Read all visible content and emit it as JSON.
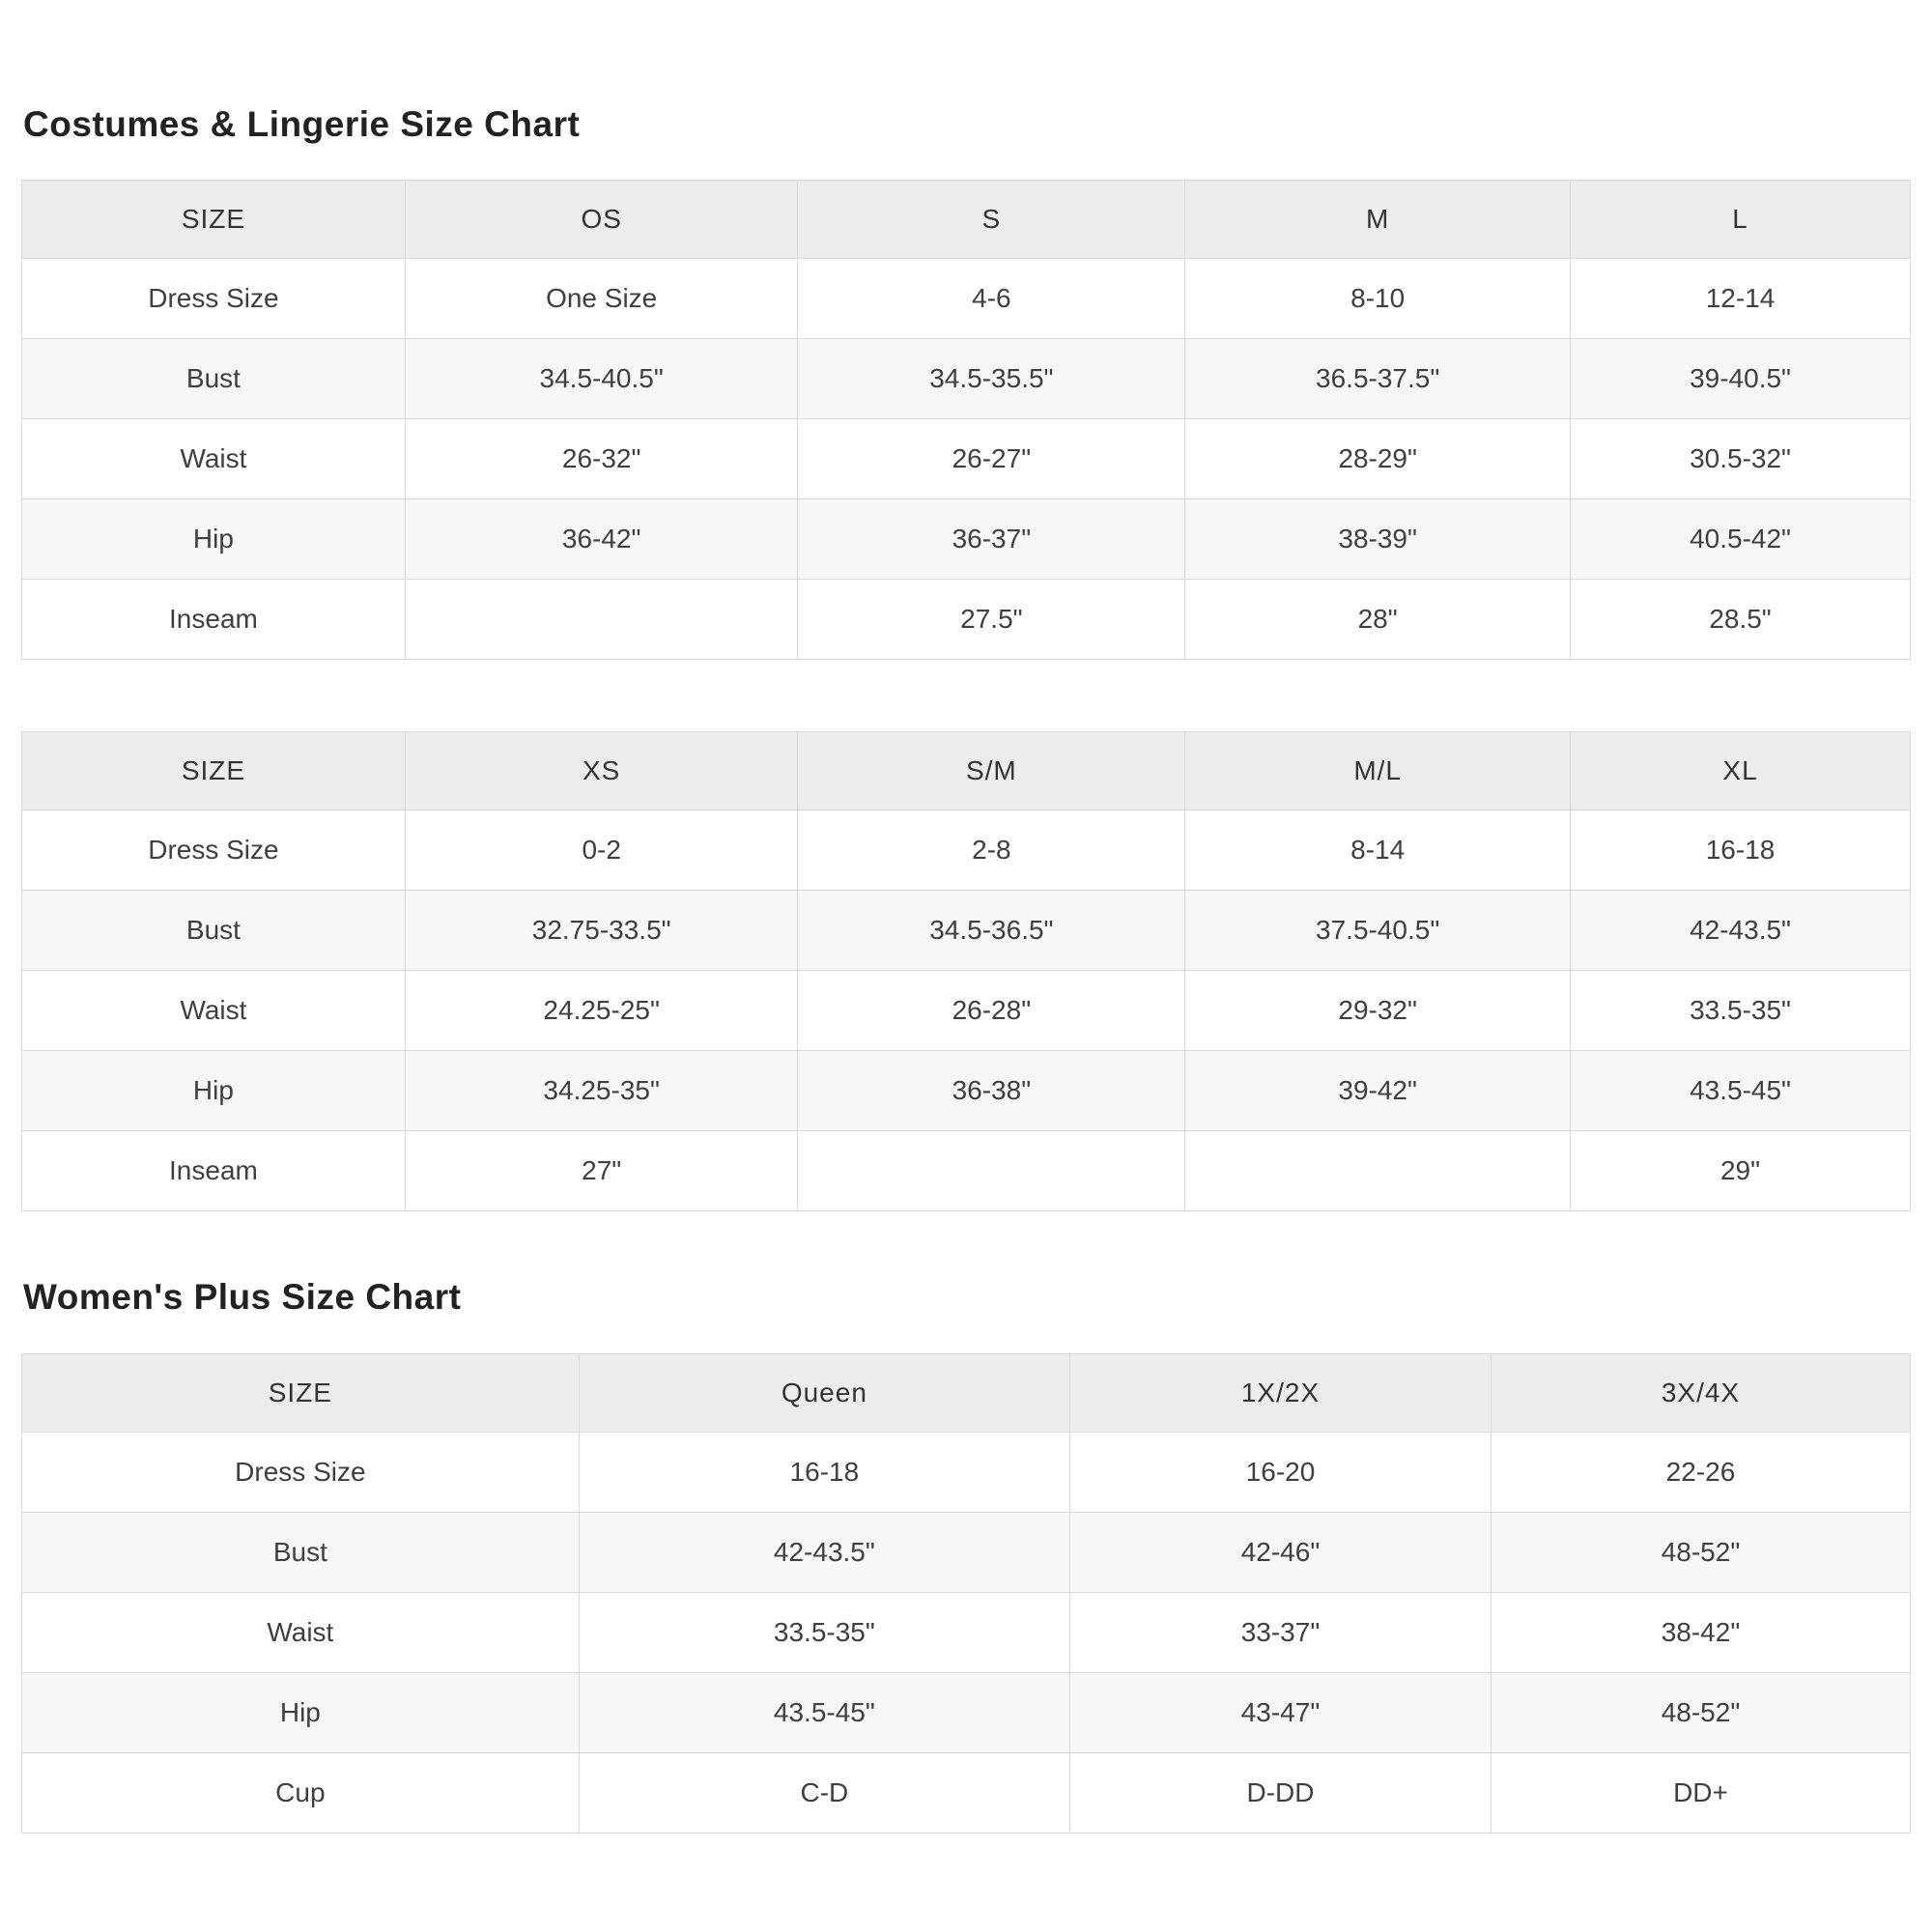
{
  "sections": [
    {
      "title": "Costumes & Lingerie Size Chart"
    },
    {
      "title": "Women's Plus Size Chart"
    }
  ],
  "tables": [
    {
      "name": "costumes-lingerie-letter-sizes",
      "columns": [
        "SIZE",
        "OS",
        "S",
        "M",
        "L"
      ],
      "rows": [
        {
          "label": "Dress Size",
          "values": [
            "One Size",
            "4-6",
            "8-10",
            "12-14"
          ]
        },
        {
          "label": "Bust",
          "values": [
            "34.5-40.5\"",
            "34.5-35.5\"",
            "36.5-37.5\"",
            "39-40.5\""
          ]
        },
        {
          "label": "Waist",
          "values": [
            "26-32\"",
            "26-27\"",
            "28-29\"",
            "30.5-32\""
          ]
        },
        {
          "label": "Hip",
          "values": [
            "36-42\"",
            "36-37\"",
            "38-39\"",
            "40.5-42\""
          ]
        },
        {
          "label": "Inseam",
          "values": [
            "",
            "27.5\"",
            "28\"",
            "28.5\""
          ]
        }
      ]
    },
    {
      "name": "costumes-lingerie-xs-xl-sizes",
      "columns": [
        "SIZE",
        "XS",
        "S/M",
        "M/L",
        "XL"
      ],
      "rows": [
        {
          "label": "Dress Size",
          "values": [
            "0-2",
            "2-8",
            "8-14",
            "16-18"
          ]
        },
        {
          "label": "Bust",
          "values": [
            "32.75-33.5\"",
            "34.5-36.5\"",
            "37.5-40.5\"",
            "42-43.5\""
          ]
        },
        {
          "label": "Waist",
          "values": [
            "24.25-25\"",
            "26-28\"",
            "29-32\"",
            "33.5-35\""
          ]
        },
        {
          "label": "Hip",
          "values": [
            "34.25-35\"",
            "36-38\"",
            "39-42\"",
            "43.5-45\""
          ]
        },
        {
          "label": "Inseam",
          "values": [
            "27\"",
            "",
            "",
            "29\""
          ]
        }
      ]
    },
    {
      "name": "womens-plus-sizes",
      "columns": [
        "SIZE",
        "Queen",
        "1X/2X",
        "3X/4X"
      ],
      "rows": [
        {
          "label": "Dress Size",
          "values": [
            "16-18",
            "16-20",
            "22-26"
          ]
        },
        {
          "label": "Bust",
          "values": [
            "42-43.5\"",
            "42-46\"",
            "48-52\""
          ]
        },
        {
          "label": "Waist",
          "values": [
            "33.5-35\"",
            "33-37\"",
            "38-42\""
          ]
        },
        {
          "label": "Hip",
          "values": [
            "43.5-45\"",
            "43-47\"",
            "48-52\""
          ]
        },
        {
          "label": "Cup",
          "values": [
            "C-D",
            "D-DD",
            "DD+"
          ]
        }
      ]
    }
  ],
  "colors": {
    "header_bg": "#ececec",
    "stripe_bg": "#f7f7f7",
    "border": "#d9d9d9",
    "cell_text": "#3f3f3f",
    "title_text": "#222222"
  }
}
